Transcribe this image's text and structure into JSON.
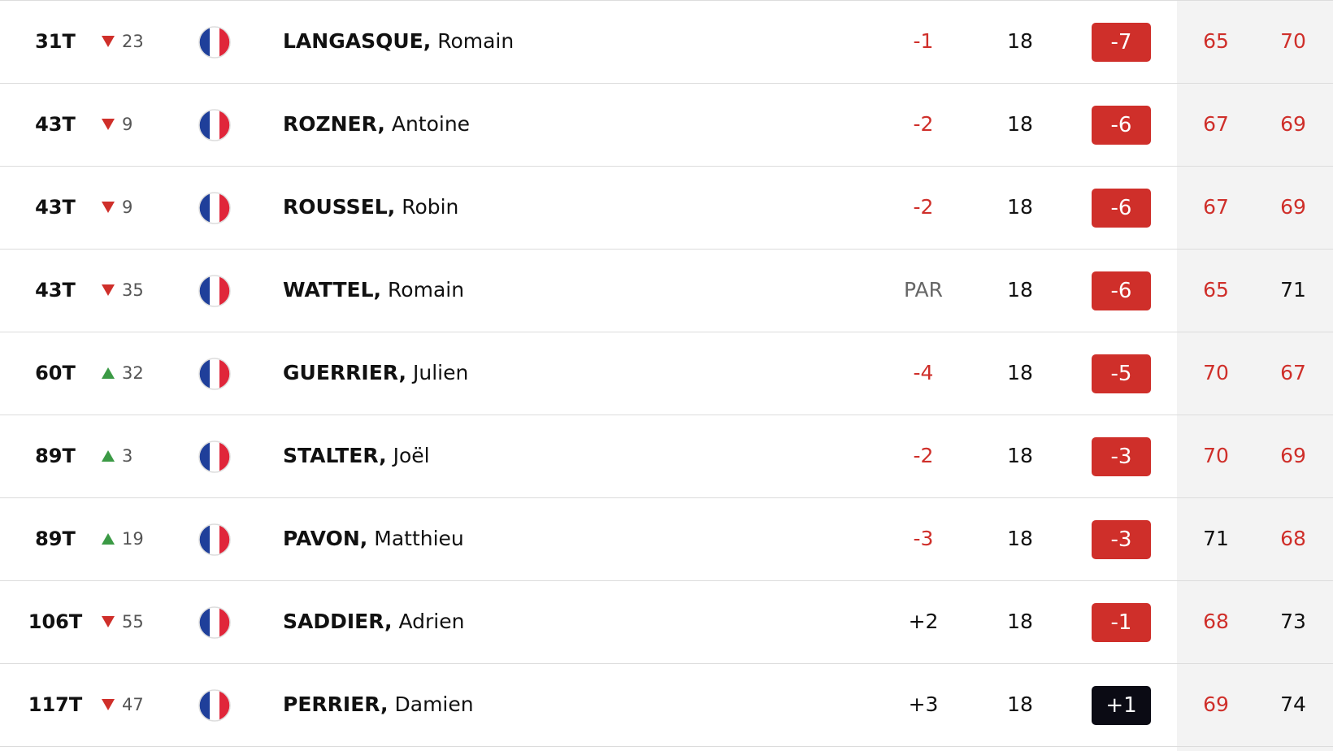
{
  "leaderboard": {
    "rows": [
      {
        "pos": "31T",
        "move": {
          "dir": "down",
          "value": "23"
        },
        "last": "LANGASQUE,",
        "first": "Romain",
        "today": "-1",
        "thru": "18",
        "total": "-7",
        "r1": 65,
        "r2": 70
      },
      {
        "pos": "43T",
        "move": {
          "dir": "down",
          "value": "9"
        },
        "last": "ROZNER,",
        "first": "Antoine",
        "today": "-2",
        "thru": "18",
        "total": "-6",
        "r1": 67,
        "r2": 69
      },
      {
        "pos": "43T",
        "move": {
          "dir": "down",
          "value": "9"
        },
        "last": "ROUSSEL,",
        "first": "Robin",
        "today": "-2",
        "thru": "18",
        "total": "-6",
        "r1": 67,
        "r2": 69
      },
      {
        "pos": "43T",
        "move": {
          "dir": "down",
          "value": "35"
        },
        "last": "WATTEL,",
        "first": "Romain",
        "today": "PAR",
        "thru": "18",
        "total": "-6",
        "r1": 65,
        "r2": 71
      },
      {
        "pos": "60T",
        "move": {
          "dir": "up",
          "value": "32"
        },
        "last": "GUERRIER,",
        "first": "Julien",
        "today": "-4",
        "thru": "18",
        "total": "-5",
        "r1": 70,
        "r2": 67
      },
      {
        "pos": "89T",
        "move": {
          "dir": "up",
          "value": "3"
        },
        "last": "STALTER,",
        "first": "Joël",
        "today": "-2",
        "thru": "18",
        "total": "-3",
        "r1": 70,
        "r2": 69
      },
      {
        "pos": "89T",
        "move": {
          "dir": "up",
          "value": "19"
        },
        "last": "PAVON,",
        "first": "Matthieu",
        "today": "-3",
        "thru": "18",
        "total": "-3",
        "r1": 71,
        "r2": 68
      },
      {
        "pos": "106T",
        "move": {
          "dir": "down",
          "value": "55"
        },
        "last": "SADDIER,",
        "first": "Adrien",
        "today": "+2",
        "thru": "18",
        "total": "-1",
        "r1": 68,
        "r2": 73
      },
      {
        "pos": "117T",
        "move": {
          "dir": "down",
          "value": "47"
        },
        "last": "PERRIER,",
        "first": "Damien",
        "today": "+3",
        "thru": "18",
        "total": "+1",
        "r1": 69,
        "r2": 74
      }
    ]
  }
}
